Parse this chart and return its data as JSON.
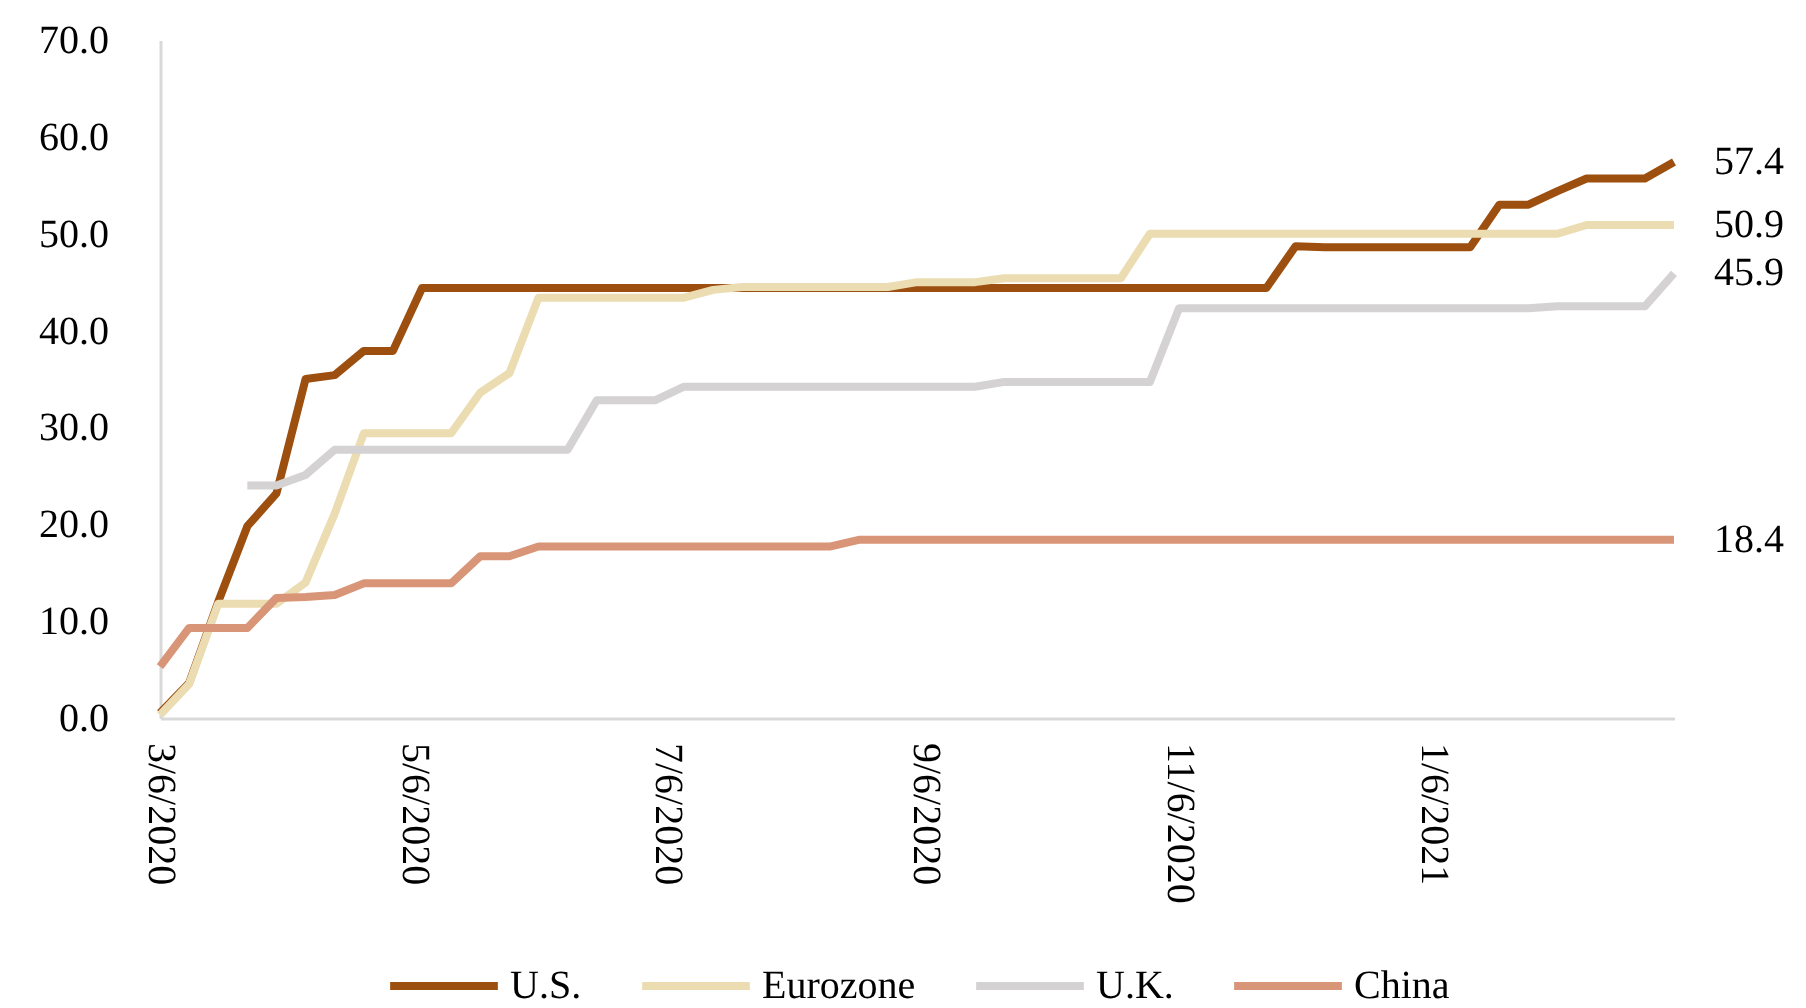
{
  "chart_data": {
    "type": "line",
    "x": [
      "2020-03-06",
      "2020-03-13",
      "2020-03-20",
      "2020-03-27",
      "2020-04-03",
      "2020-04-10",
      "2020-04-17",
      "2020-04-24",
      "2020-05-01",
      "2020-05-08",
      "2020-05-15",
      "2020-05-22",
      "2020-05-29",
      "2020-06-05",
      "2020-06-12",
      "2020-06-19",
      "2020-06-26",
      "2020-07-03",
      "2020-07-10",
      "2020-07-17",
      "2020-07-24",
      "2020-07-31",
      "2020-08-07",
      "2020-08-14",
      "2020-08-21",
      "2020-08-28",
      "2020-09-04",
      "2020-09-11",
      "2020-09-18",
      "2020-09-25",
      "2020-10-02",
      "2020-10-09",
      "2020-10-16",
      "2020-10-23",
      "2020-10-30",
      "2020-11-06",
      "2020-11-13",
      "2020-11-20",
      "2020-11-27",
      "2020-12-04",
      "2020-12-11",
      "2020-12-18",
      "2020-12-25",
      "2021-01-01",
      "2021-01-08",
      "2021-01-15",
      "2021-01-22",
      "2021-01-29",
      "2021-02-05",
      "2021-02-12",
      "2021-02-19",
      "2021-02-26",
      "2021-03-05"
    ],
    "series": [
      {
        "name": "U.S.",
        "color": "#9c4f0f",
        "values": [
          0.5,
          3.6,
          12.0,
          19.8,
          23.2,
          35.0,
          35.4,
          37.9,
          37.9,
          44.4,
          44.4,
          44.4,
          44.4,
          44.4,
          44.4,
          44.4,
          44.4,
          44.4,
          44.4,
          44.4,
          44.4,
          44.4,
          44.4,
          44.4,
          44.4,
          44.4,
          44.4,
          44.4,
          44.4,
          44.4,
          44.4,
          44.4,
          44.4,
          44.4,
          44.4,
          44.4,
          44.4,
          44.4,
          44.4,
          48.7,
          48.6,
          48.6,
          48.6,
          48.6,
          48.6,
          48.6,
          53.0,
          53.0,
          54.4,
          55.7,
          55.7,
          55.7,
          57.4
        ],
        "value_labels": [
          null,
          null,
          null,
          null,
          null,
          null,
          null,
          null,
          null,
          null,
          null,
          null,
          null,
          null,
          null,
          null,
          null,
          null,
          null,
          null,
          null,
          null,
          null,
          null,
          null,
          null,
          null,
          null,
          null,
          null,
          null,
          null,
          null,
          null,
          null,
          null,
          null,
          null,
          null,
          null,
          null,
          null,
          null,
          null,
          null,
          null,
          null,
          null,
          null,
          null,
          null,
          null,
          "57.4"
        ]
      },
      {
        "name": "Eurozone",
        "color": "#ebdcb2",
        "values": [
          0.3,
          3.5,
          11.8,
          11.8,
          11.8,
          14.0,
          21.1,
          29.4,
          29.4,
          29.4,
          29.4,
          33.6,
          35.6,
          43.4,
          43.4,
          43.4,
          43.4,
          43.4,
          43.4,
          44.2,
          44.5,
          44.5,
          44.5,
          44.5,
          44.5,
          44.5,
          45.0,
          45.0,
          45.0,
          45.4,
          45.4,
          45.4,
          45.4,
          45.4,
          50.0,
          50.0,
          50.0,
          50.0,
          50.0,
          50.0,
          50.0,
          50.0,
          50.0,
          50.0,
          50.0,
          50.0,
          50.0,
          50.0,
          50.0,
          50.9,
          50.9,
          50.9,
          50.9
        ],
        "value_labels": [
          null,
          null,
          null,
          null,
          null,
          null,
          null,
          null,
          null,
          null,
          null,
          null,
          null,
          null,
          null,
          null,
          null,
          null,
          null,
          null,
          null,
          null,
          null,
          null,
          null,
          null,
          null,
          null,
          null,
          null,
          null,
          null,
          null,
          null,
          null,
          null,
          null,
          null,
          null,
          null,
          null,
          null,
          null,
          null,
          null,
          null,
          null,
          null,
          null,
          null,
          null,
          null,
          "50.9"
        ]
      },
      {
        "name": "U.K.",
        "color": "#d4d2d2",
        "values": [
          null,
          null,
          null,
          24.0,
          24.0,
          25.1,
          27.7,
          27.7,
          27.7,
          27.7,
          27.7,
          27.7,
          27.7,
          27.7,
          27.7,
          32.8,
          32.8,
          32.8,
          34.2,
          34.2,
          34.2,
          34.2,
          34.2,
          34.2,
          34.2,
          34.2,
          34.2,
          34.2,
          34.2,
          34.7,
          34.7,
          34.7,
          34.7,
          34.7,
          34.7,
          42.3,
          42.3,
          42.3,
          42.3,
          42.3,
          42.3,
          42.3,
          42.3,
          42.3,
          42.3,
          42.3,
          42.3,
          42.3,
          42.5,
          42.5,
          42.5,
          42.5,
          45.9
        ],
        "value_labels": [
          null,
          null,
          null,
          null,
          null,
          null,
          null,
          null,
          null,
          null,
          null,
          null,
          null,
          null,
          null,
          null,
          null,
          null,
          null,
          null,
          null,
          null,
          null,
          null,
          null,
          null,
          null,
          null,
          null,
          null,
          null,
          null,
          null,
          null,
          null,
          null,
          null,
          null,
          null,
          null,
          null,
          null,
          null,
          null,
          null,
          null,
          null,
          null,
          null,
          null,
          null,
          null,
          "45.9"
        ]
      },
      {
        "name": "China",
        "color": "#d99577",
        "values": [
          5.3,
          9.3,
          9.3,
          9.3,
          12.4,
          12.5,
          12.7,
          13.9,
          13.9,
          13.9,
          13.9,
          16.7,
          16.7,
          17.7,
          17.7,
          17.7,
          17.7,
          17.7,
          17.7,
          17.7,
          17.7,
          17.7,
          17.7,
          17.7,
          18.4,
          18.4,
          18.4,
          18.4,
          18.4,
          18.4,
          18.4,
          18.4,
          18.4,
          18.4,
          18.4,
          18.4,
          18.4,
          18.4,
          18.4,
          18.4,
          18.4,
          18.4,
          18.4,
          18.4,
          18.4,
          18.4,
          18.4,
          18.4,
          18.4,
          18.4,
          18.4,
          18.4,
          18.4
        ],
        "value_labels": [
          null,
          null,
          null,
          null,
          null,
          null,
          null,
          null,
          null,
          null,
          null,
          null,
          null,
          null,
          null,
          null,
          null,
          null,
          null,
          null,
          null,
          null,
          null,
          null,
          null,
          null,
          null,
          null,
          null,
          null,
          null,
          null,
          null,
          null,
          null,
          null,
          null,
          null,
          null,
          null,
          null,
          null,
          null,
          null,
          null,
          null,
          null,
          null,
          null,
          null,
          null,
          null,
          "18.4"
        ]
      }
    ],
    "xlim": [
      "2020-03-06",
      "2021-03-05"
    ],
    "xticks": [
      {
        "value": "2020-03-06",
        "label": "3/6/2020"
      },
      {
        "value": "2020-05-06",
        "label": "5/6/2020"
      },
      {
        "value": "2020-07-06",
        "label": "7/6/2020"
      },
      {
        "value": "2020-09-06",
        "label": "9/6/2020"
      },
      {
        "value": "2020-11-06",
        "label": "11/6/2020"
      },
      {
        "value": "2021-01-06",
        "label": "1/6/2021"
      }
    ],
    "ylim": [
      0,
      70
    ],
    "yticks": [
      {
        "value": 0,
        "label": "0.0"
      },
      {
        "value": 10,
        "label": "10.0"
      },
      {
        "value": 20,
        "label": "20.0"
      },
      {
        "value": 30,
        "label": "30.0"
      },
      {
        "value": 40,
        "label": "40.0"
      },
      {
        "value": 50,
        "label": "50.0"
      },
      {
        "value": 60,
        "label": "60.0"
      },
      {
        "value": 70,
        "label": "70.0"
      }
    ],
    "legend": "bottom"
  }
}
